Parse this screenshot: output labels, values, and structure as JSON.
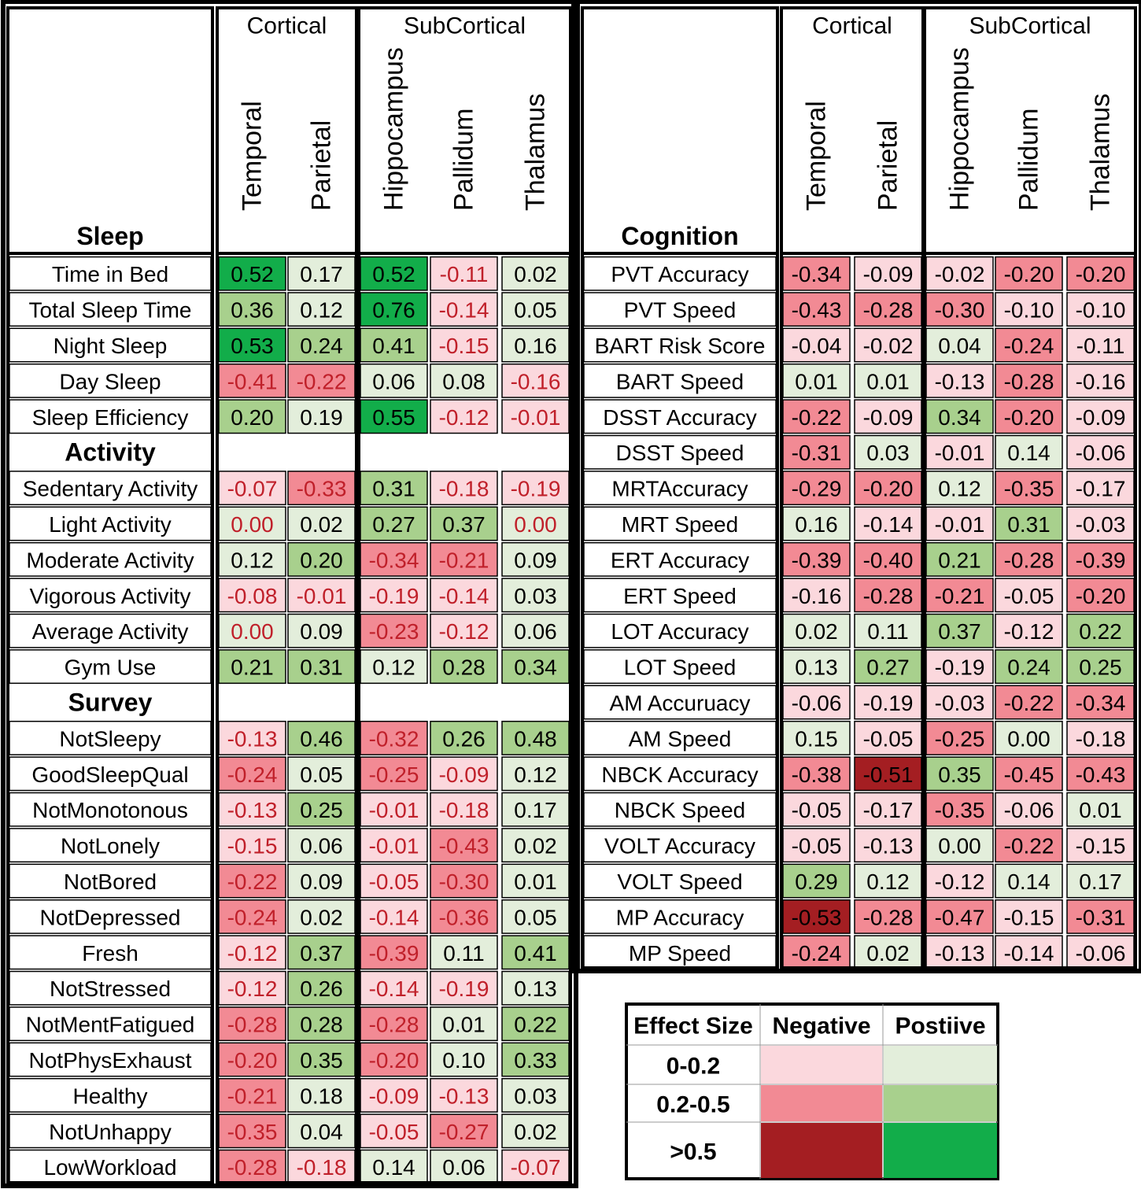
{
  "chart_data": {
    "type": "heatmap",
    "column_groups": [
      {
        "label": "Cortical",
        "columns": [
          "Temporal",
          "Parietal"
        ]
      },
      {
        "label": "SubCortical",
        "columns": [
          "Hippocampus",
          "Pallidum",
          "Thalamus"
        ]
      }
    ],
    "left_panel": {
      "sections": [
        {
          "title": "Sleep",
          "rows": [
            {
              "label": "Time in Bed",
              "values": [
                0.52,
                0.17,
                0.52,
                -0.11,
                0.02
              ]
            },
            {
              "label": "Total Sleep Time",
              "values": [
                0.36,
                0.12,
                0.76,
                -0.14,
                0.05
              ]
            },
            {
              "label": "Night Sleep",
              "values": [
                0.53,
                0.24,
                0.41,
                -0.15,
                0.16
              ]
            },
            {
              "label": "Day Sleep",
              "values": [
                -0.41,
                -0.22,
                0.06,
                0.08,
                -0.16
              ]
            },
            {
              "label": "Sleep Efficiency",
              "values": [
                0.2,
                0.19,
                0.55,
                -0.12,
                -0.01
              ]
            }
          ]
        },
        {
          "title": "Activity",
          "rows": [
            {
              "label": "Sedentary Activity",
              "values": [
                -0.07,
                -0.33,
                0.31,
                -0.18,
                -0.19
              ]
            },
            {
              "label": "Light Activity",
              "values": [
                0.0,
                0.02,
                0.27,
                0.37,
                0.0
              ]
            },
            {
              "label": "Moderate Activity",
              "values": [
                0.12,
                0.2,
                -0.34,
                -0.21,
                0.09
              ]
            },
            {
              "label": "Vigorous Activity",
              "values": [
                -0.08,
                -0.01,
                -0.19,
                -0.14,
                0.03
              ]
            },
            {
              "label": "Average Activity",
              "values": [
                0.0,
                0.09,
                -0.23,
                -0.12,
                0.06
              ]
            },
            {
              "label": "Gym Use",
              "values": [
                0.21,
                0.31,
                0.12,
                0.28,
                0.34
              ]
            }
          ]
        },
        {
          "title": "Survey",
          "rows": [
            {
              "label": "NotSleepy",
              "values": [
                -0.13,
                0.46,
                -0.32,
                0.26,
                0.48
              ]
            },
            {
              "label": "GoodSleepQual",
              "values": [
                -0.24,
                0.05,
                -0.25,
                -0.09,
                0.12
              ]
            },
            {
              "label": "NotMonotonous",
              "values": [
                -0.13,
                0.25,
                -0.01,
                -0.18,
                0.17
              ]
            },
            {
              "label": "NotLonely",
              "values": [
                -0.15,
                0.06,
                -0.01,
                -0.43,
                0.02
              ]
            },
            {
              "label": "NotBored",
              "values": [
                -0.22,
                0.09,
                -0.05,
                -0.3,
                0.01
              ]
            },
            {
              "label": "NotDepressed",
              "values": [
                -0.24,
                0.02,
                -0.14,
                -0.36,
                0.05
              ]
            },
            {
              "label": "Fresh",
              "values": [
                -0.12,
                0.37,
                -0.39,
                0.11,
                0.41
              ]
            },
            {
              "label": "NotStressed",
              "values": [
                -0.12,
                0.26,
                -0.14,
                -0.19,
                0.13
              ]
            },
            {
              "label": "NotMentFatigued",
              "values": [
                -0.28,
                0.28,
                -0.28,
                0.01,
                0.22
              ]
            },
            {
              "label": "NotPhysExhaust",
              "values": [
                -0.2,
                0.35,
                -0.2,
                0.1,
                0.33
              ]
            },
            {
              "label": "Healthy",
              "values": [
                -0.21,
                0.18,
                -0.09,
                -0.13,
                0.03
              ]
            },
            {
              "label": "NotUnhappy",
              "values": [
                -0.35,
                0.04,
                -0.05,
                -0.27,
                0.02
              ]
            },
            {
              "label": "LowWorkload",
              "values": [
                -0.28,
                -0.18,
                0.14,
                0.06,
                -0.07
              ]
            }
          ]
        }
      ]
    },
    "right_panel": {
      "sections": [
        {
          "title": "Cognition",
          "rows": [
            {
              "label": "PVT Accuracy",
              "values": [
                -0.34,
                -0.09,
                -0.02,
                -0.2,
                -0.2
              ]
            },
            {
              "label": "PVT Speed",
              "values": [
                -0.43,
                -0.28,
                -0.3,
                -0.1,
                -0.1
              ]
            },
            {
              "label": "BART Risk Score",
              "values": [
                -0.04,
                -0.02,
                0.04,
                -0.24,
                -0.11
              ]
            },
            {
              "label": "BART Speed",
              "values": [
                0.01,
                0.01,
                -0.13,
                -0.28,
                -0.16
              ]
            },
            {
              "label": "DSST Accuracy",
              "values": [
                -0.22,
                -0.09,
                0.34,
                -0.2,
                -0.09
              ]
            },
            {
              "label": "DSST Speed",
              "values": [
                -0.31,
                0.03,
                -0.01,
                0.14,
                -0.06
              ]
            },
            {
              "label": "MRTAccuracy",
              "values": [
                -0.29,
                -0.2,
                0.12,
                -0.35,
                -0.17
              ]
            },
            {
              "label": "MRT Speed",
              "values": [
                0.16,
                -0.14,
                -0.01,
                0.31,
                -0.03
              ]
            },
            {
              "label": "ERT Accuracy",
              "values": [
                -0.39,
                -0.4,
                0.21,
                -0.28,
                -0.39
              ]
            },
            {
              "label": "ERT Speed",
              "values": [
                -0.16,
                -0.28,
                -0.21,
                -0.05,
                -0.2
              ]
            },
            {
              "label": "LOT Accuracy",
              "values": [
                0.02,
                0.11,
                0.37,
                -0.12,
                0.22
              ]
            },
            {
              "label": "LOT Speed",
              "values": [
                0.13,
                0.27,
                -0.19,
                0.24,
                0.25
              ]
            },
            {
              "label": "AM Accuruacy",
              "values": [
                -0.06,
                -0.19,
                -0.03,
                -0.22,
                -0.34
              ]
            },
            {
              "label": "AM Speed",
              "values": [
                0.15,
                -0.05,
                -0.25,
                0.0,
                -0.18
              ]
            },
            {
              "label": "NBCK Accuracy",
              "values": [
                -0.38,
                -0.51,
                0.35,
                -0.45,
                -0.43
              ]
            },
            {
              "label": "NBCK Speed",
              "values": [
                -0.05,
                -0.17,
                -0.35,
                -0.06,
                0.01
              ]
            },
            {
              "label": "VOLT Accuracy",
              "values": [
                -0.05,
                -0.13,
                0.0,
                -0.22,
                -0.15
              ]
            },
            {
              "label": "VOLT Speed",
              "values": [
                0.29,
                0.12,
                -0.12,
                0.14,
                0.17
              ]
            },
            {
              "label": "MP Accuracy",
              "values": [
                -0.53,
                -0.28,
                -0.47,
                -0.15,
                -0.31
              ]
            },
            {
              "label": "MP Speed",
              "values": [
                -0.24,
                0.02,
                -0.13,
                -0.14,
                -0.06
              ]
            }
          ]
        }
      ]
    },
    "legend": {
      "header": [
        "Effect Size",
        "Negative",
        "Postiive"
      ],
      "ranges": [
        "0-0.2",
        "0.2-0.5",
        ">0.5"
      ],
      "negative_colors": [
        "#fbd8dd",
        "#f28a94",
        "#a41e22"
      ],
      "positive_colors": [
        "#e3eedb",
        "#a8d08d",
        "#12ad4a"
      ]
    }
  }
}
